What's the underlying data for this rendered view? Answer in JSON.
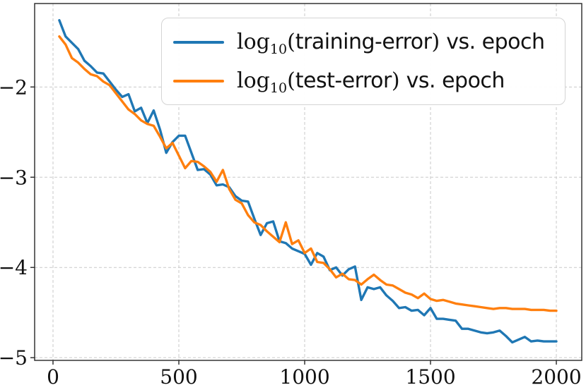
{
  "chart_data": {
    "type": "line",
    "title": "",
    "xlabel": "",
    "ylabel": "",
    "grid": true,
    "grid_style": "dashed",
    "legend_position": "upper right",
    "xlim": [
      -73,
      2101
    ],
    "ylim": [
      -5.03,
      -1.075
    ],
    "xticks": [
      0,
      500,
      1000,
      1500,
      2000
    ],
    "yticks": [
      -2,
      -3,
      -4,
      -5
    ],
    "xtick_labels": [
      "0",
      "500",
      "1000",
      "1500",
      "2000"
    ],
    "ytick_labels": [
      "−2",
      "−3",
      "−4",
      "−5"
    ],
    "x": [
      25,
      50,
      75,
      100,
      125,
      150,
      175,
      200,
      225,
      250,
      275,
      300,
      325,
      350,
      375,
      400,
      425,
      450,
      475,
      500,
      525,
      550,
      575,
      600,
      625,
      650,
      675,
      700,
      725,
      750,
      775,
      800,
      825,
      850,
      875,
      900,
      925,
      950,
      975,
      1000,
      1025,
      1050,
      1075,
      1100,
      1125,
      1150,
      1175,
      1200,
      1225,
      1250,
      1275,
      1300,
      1325,
      1350,
      1375,
      1400,
      1425,
      1450,
      1475,
      1500,
      1525,
      1550,
      1575,
      1600,
      1625,
      1650,
      1675,
      1700,
      1725,
      1750,
      1775,
      1800,
      1825,
      1850,
      1875,
      1900,
      1925,
      1950,
      1975,
      2000
    ],
    "series": [
      {
        "name": "log10(training-error) vs. epoch",
        "color": "#1f77b4",
        "values": [
          -1.26,
          -1.44,
          -1.51,
          -1.58,
          -1.71,
          -1.77,
          -1.84,
          -1.85,
          -1.94,
          -2.03,
          -2.11,
          -2.08,
          -2.27,
          -2.23,
          -2.4,
          -2.26,
          -2.47,
          -2.73,
          -2.61,
          -2.54,
          -2.54,
          -2.73,
          -2.92,
          -2.91,
          -2.97,
          -3.09,
          -3.08,
          -3.11,
          -3.21,
          -3.26,
          -3.27,
          -3.46,
          -3.64,
          -3.51,
          -3.49,
          -3.71,
          -3.73,
          -3.79,
          -3.82,
          -3.85,
          -3.97,
          -3.84,
          -3.88,
          -4.03,
          -4.0,
          -4.09,
          -4.02,
          -3.99,
          -4.36,
          -4.22,
          -4.24,
          -4.22,
          -4.31,
          -4.37,
          -4.45,
          -4.44,
          -4.48,
          -4.47,
          -4.53,
          -4.45,
          -4.57,
          -4.57,
          -4.58,
          -4.59,
          -4.68,
          -4.68,
          -4.7,
          -4.72,
          -4.73,
          -4.72,
          -4.7,
          -4.76,
          -4.83,
          -4.8,
          -4.77,
          -4.82,
          -4.81,
          -4.82,
          -4.82,
          -4.82
        ]
      },
      {
        "name": "log10(test-error) vs. epoch",
        "color": "#ff7f0e",
        "values": [
          -1.44,
          -1.53,
          -1.68,
          -1.73,
          -1.8,
          -1.86,
          -1.88,
          -1.94,
          -1.98,
          -2.07,
          -2.16,
          -2.25,
          -2.3,
          -2.37,
          -2.41,
          -2.43,
          -2.55,
          -2.68,
          -2.62,
          -2.76,
          -2.9,
          -2.82,
          -2.83,
          -2.88,
          -2.94,
          -3.05,
          -2.92,
          -3.13,
          -3.25,
          -3.29,
          -3.42,
          -3.5,
          -3.53,
          -3.6,
          -3.66,
          -3.72,
          -3.5,
          -3.74,
          -3.7,
          -3.84,
          -3.79,
          -3.94,
          -3.95,
          -4.02,
          -4.11,
          -4.07,
          -4.13,
          -4.14,
          -4.19,
          -4.13,
          -4.08,
          -4.14,
          -4.19,
          -4.2,
          -4.24,
          -4.28,
          -4.3,
          -4.34,
          -4.29,
          -4.35,
          -4.37,
          -4.36,
          -4.38,
          -4.4,
          -4.41,
          -4.42,
          -4.43,
          -4.44,
          -4.45,
          -4.46,
          -4.45,
          -4.45,
          -4.46,
          -4.46,
          -4.46,
          -4.47,
          -4.47,
          -4.47,
          -4.48,
          -4.48
        ]
      }
    ]
  },
  "legend": {
    "entries": [
      {
        "log": "log",
        "sub": "10",
        "open": "(",
        "name": "training-error",
        "close": ")",
        "rest": " vs. epoch",
        "color": "#1f77b4"
      },
      {
        "log": "log",
        "sub": "10",
        "open": "(",
        "name": "test-error",
        "close": ")",
        "rest": " vs. epoch",
        "color": "#ff7f0e"
      }
    ]
  },
  "style_colors": {
    "grid": "#c9c9c9",
    "spine": "#262626",
    "tick_label": "#111111",
    "background": "#ffffff"
  }
}
